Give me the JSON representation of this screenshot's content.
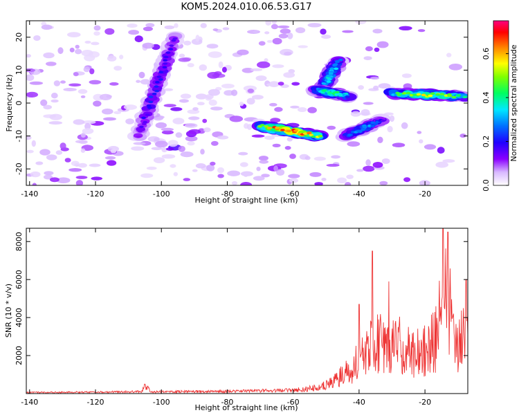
{
  "title": "KOM5.2024.010.06.53.G17",
  "chart_data": [
    {
      "type": "heatmap",
      "xlabel": "Height of straight line (km)",
      "ylabel": "Frequency (Hz)",
      "xlim": [
        -141,
        -7
      ],
      "ylim": [
        -25,
        25
      ],
      "xticks": [
        -140,
        -120,
        -100,
        -80,
        -60,
        -40,
        -20
      ],
      "yticks": [
        -20,
        -10,
        0,
        10,
        20
      ],
      "colorbar": {
        "label": "Normalized spectral amplitude",
        "range": [
          0.0,
          0.75
        ],
        "ticks": [
          0.0,
          0.2,
          0.4,
          0.6
        ],
        "colormap": [
          "#ffffff",
          "#8a00ff",
          "#0000ff",
          "#00e0ff",
          "#00ff40",
          "#ffff00",
          "#ff0000",
          "#ff0080"
        ]
      },
      "features": [
        {
          "from": [
            -107,
            -10
          ],
          "to": [
            -96,
            20
          ],
          "peak": 0.18
        },
        {
          "from": [
            -70,
            -7
          ],
          "to": [
            -52,
            -10
          ],
          "peak": 0.6
        },
        {
          "from": [
            -52,
            3
          ],
          "to": [
            -46,
            13
          ],
          "peak": 0.3
        },
        {
          "from": [
            -53,
            4
          ],
          "to": [
            -43,
            2
          ],
          "peak": 0.35
        },
        {
          "from": [
            -44,
            -10
          ],
          "to": [
            -33,
            -5
          ],
          "peak": 0.25
        },
        {
          "from": [
            -30,
            3
          ],
          "to": [
            -8,
            2
          ],
          "peak": 0.45
        }
      ]
    },
    {
      "type": "line",
      "xlabel": "Height of straight line (km)",
      "ylabel": "SNR (10 * v/v)",
      "xlim": [
        -141,
        -7
      ],
      "ylim": [
        0,
        8700
      ],
      "xticks": [
        -140,
        -120,
        -100,
        -80,
        -60,
        -40,
        -20
      ],
      "yticks": [
        2000,
        4000,
        6000,
        8000
      ],
      "color": "#ee3333",
      "envelope": [
        {
          "x": -141,
          "y": 80
        },
        {
          "x": -120,
          "y": 100
        },
        {
          "x": -106,
          "y": 140
        },
        {
          "x": -105,
          "y": 500
        },
        {
          "x": -103,
          "y": 130
        },
        {
          "x": -80,
          "y": 150
        },
        {
          "x": -60,
          "y": 250
        },
        {
          "x": -52,
          "y": 400
        },
        {
          "x": -47,
          "y": 900
        },
        {
          "x": -44,
          "y": 1500
        },
        {
          "x": -42,
          "y": 1300
        },
        {
          "x": -41,
          "y": 2500
        },
        {
          "x": -38,
          "y": 3000
        },
        {
          "x": -36,
          "y": 4500
        },
        {
          "x": -32,
          "y": 3500
        },
        {
          "x": -28,
          "y": 4000
        },
        {
          "x": -24,
          "y": 3000
        },
        {
          "x": -20,
          "y": 3500
        },
        {
          "x": -16,
          "y": 4500
        },
        {
          "x": -15,
          "y": 7500
        },
        {
          "x": -13,
          "y": 7000
        },
        {
          "x": -10,
          "y": 3500
        },
        {
          "x": -7,
          "y": 5000
        }
      ],
      "peaks": [
        {
          "x": -105,
          "y": 500
        },
        {
          "x": -40,
          "y": 4700
        },
        {
          "x": -36,
          "y": 7500
        },
        {
          "x": -31,
          "y": 5900
        },
        {
          "x": -14.5,
          "y": 8700
        },
        {
          "x": -13,
          "y": 8500
        },
        {
          "x": -7.5,
          "y": 6000
        }
      ]
    }
  ]
}
